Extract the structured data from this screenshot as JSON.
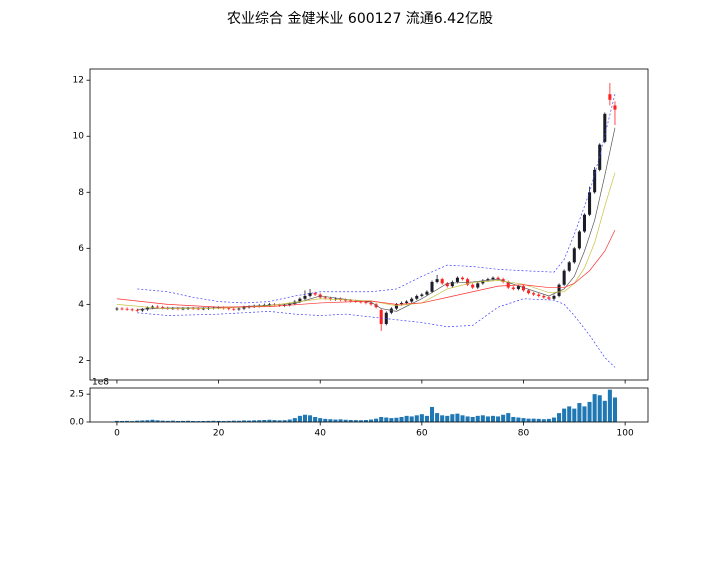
{
  "chart_data": [
    {
      "type": "candlestick",
      "title": "农业综合 金健米业 600127 流通6.42亿股",
      "up_color": "#1c1c28",
      "down_color": "#ff2020",
      "open": [
        3.82,
        3.85,
        3.84,
        3.82,
        3.8,
        3.78,
        3.82,
        3.88,
        3.92,
        3.9,
        3.87,
        3.85,
        3.86,
        3.84,
        3.85,
        3.86,
        3.85,
        3.84,
        3.85,
        3.87,
        3.88,
        3.88,
        3.86,
        3.84,
        3.82,
        3.85,
        3.9,
        3.92,
        3.94,
        3.96,
        3.98,
        4.0,
        3.97,
        3.96,
        3.98,
        4.02,
        4.1,
        4.2,
        4.3,
        4.4,
        4.35,
        4.25,
        4.22,
        4.18,
        4.2,
        4.16,
        4.14,
        4.12,
        4.1,
        4.08,
        4.05,
        4.0,
        3.8,
        3.3,
        3.7,
        3.85,
        4.0,
        4.05,
        4.1,
        4.2,
        4.3,
        4.35,
        4.45,
        4.8,
        4.9,
        4.75,
        4.65,
        4.8,
        4.95,
        4.9,
        4.7,
        4.6,
        4.75,
        4.85,
        4.9,
        4.95,
        4.9,
        4.8,
        4.6,
        4.55,
        4.65,
        4.5,
        4.4,
        4.35,
        4.3,
        4.25,
        4.2,
        4.3,
        4.7,
        5.2,
        5.5,
        6.0,
        6.6,
        7.2,
        8.0,
        8.8,
        9.8,
        11.5,
        11.1
      ],
      "high": [
        3.9,
        3.9,
        3.89,
        3.87,
        3.85,
        3.87,
        3.93,
        3.97,
        3.97,
        3.95,
        3.92,
        3.91,
        3.91,
        3.9,
        3.91,
        3.91,
        3.9,
        3.9,
        3.92,
        3.93,
        3.93,
        3.93,
        3.91,
        3.89,
        3.9,
        3.95,
        3.97,
        3.99,
        4.01,
        4.03,
        4.05,
        4.05,
        4.02,
        4.03,
        4.07,
        4.15,
        4.25,
        4.5,
        4.55,
        4.45,
        4.4,
        4.3,
        4.27,
        4.25,
        4.25,
        4.21,
        4.19,
        4.17,
        4.15,
        4.13,
        4.1,
        4.05,
        3.85,
        3.75,
        3.9,
        4.05,
        4.1,
        4.15,
        4.25,
        4.35,
        4.4,
        4.5,
        4.85,
        5.05,
        4.95,
        4.8,
        4.85,
        5.0,
        5.0,
        4.95,
        4.75,
        4.8,
        4.9,
        4.95,
        5.0,
        5.0,
        4.95,
        4.85,
        4.65,
        4.7,
        4.7,
        4.55,
        4.45,
        4.4,
        4.35,
        4.3,
        4.35,
        4.75,
        5.25,
        5.55,
        6.05,
        6.65,
        7.25,
        8.2,
        8.9,
        9.75,
        10.85,
        11.9,
        11.25
      ],
      "low": [
        3.77,
        3.79,
        3.77,
        3.75,
        3.73,
        3.73,
        3.77,
        3.83,
        3.85,
        3.82,
        3.8,
        3.8,
        3.79,
        3.79,
        3.8,
        3.8,
        3.79,
        3.79,
        3.8,
        3.82,
        3.83,
        3.81,
        3.79,
        3.77,
        3.77,
        3.8,
        3.85,
        3.87,
        3.89,
        3.91,
        3.93,
        3.92,
        3.91,
        3.91,
        3.93,
        3.97,
        4.05,
        4.15,
        4.25,
        4.3,
        4.2,
        4.17,
        4.13,
        4.13,
        4.11,
        4.09,
        4.07,
        4.05,
        4.03,
        4.0,
        3.95,
        3.85,
        3.05,
        3.25,
        3.65,
        3.8,
        3.95,
        4.0,
        4.05,
        4.15,
        4.25,
        4.3,
        4.4,
        4.75,
        4.7,
        4.6,
        4.6,
        4.75,
        4.85,
        4.65,
        4.55,
        4.55,
        4.7,
        4.8,
        4.85,
        4.85,
        4.75,
        4.55,
        4.5,
        4.5,
        4.45,
        4.35,
        4.3,
        4.25,
        4.2,
        4.15,
        4.15,
        4.25,
        4.65,
        5.15,
        5.45,
        5.95,
        6.55,
        7.15,
        7.95,
        8.75,
        9.75,
        11.1,
        10.4
      ],
      "close": [
        3.85,
        3.84,
        3.82,
        3.8,
        3.78,
        3.82,
        3.88,
        3.92,
        3.9,
        3.87,
        3.85,
        3.86,
        3.84,
        3.85,
        3.86,
        3.85,
        3.84,
        3.85,
        3.87,
        3.88,
        3.88,
        3.86,
        3.84,
        3.82,
        3.85,
        3.9,
        3.92,
        3.94,
        3.96,
        3.98,
        4.0,
        3.97,
        3.96,
        3.98,
        4.02,
        4.1,
        4.2,
        4.3,
        4.4,
        4.35,
        4.25,
        4.22,
        4.18,
        4.2,
        4.16,
        4.14,
        4.12,
        4.1,
        4.08,
        4.05,
        4.0,
        3.9,
        3.3,
        3.7,
        3.85,
        4.0,
        4.05,
        4.1,
        4.2,
        4.3,
        4.35,
        4.45,
        4.8,
        4.9,
        4.75,
        4.65,
        4.8,
        4.95,
        4.9,
        4.7,
        4.6,
        4.75,
        4.85,
        4.9,
        4.95,
        4.9,
        4.8,
        4.6,
        4.55,
        4.65,
        4.5,
        4.4,
        4.35,
        4.3,
        4.25,
        4.2,
        4.3,
        4.7,
        5.2,
        5.5,
        6.0,
        6.6,
        7.2,
        8.0,
        8.8,
        9.7,
        10.8,
        11.3,
        10.95
      ],
      "series": [
        {
          "color": "#555555",
          "dashed": false,
          "x": [
            4,
            10,
            20,
            30,
            35,
            40,
            45,
            50,
            52,
            55,
            60,
            65,
            70,
            75,
            80,
            85,
            88,
            90,
            92,
            94,
            96,
            98
          ],
          "values": [
            3.82,
            3.87,
            3.87,
            3.97,
            4.03,
            4.3,
            4.18,
            4.08,
            3.85,
            3.75,
            4.2,
            4.75,
            4.8,
            4.9,
            4.6,
            4.3,
            4.55,
            5.0,
            5.9,
            7.0,
            8.6,
            10.3
          ]
        },
        {
          "color": "#c8c040",
          "dashed": false,
          "x": [
            0,
            9,
            20,
            30,
            40,
            50,
            55,
            60,
            65,
            70,
            75,
            80,
            85,
            88,
            90,
            92,
            94,
            96,
            98
          ],
          "values": [
            4.0,
            3.85,
            3.86,
            3.95,
            4.2,
            4.12,
            3.95,
            4.05,
            4.55,
            4.78,
            4.85,
            4.72,
            4.42,
            4.45,
            4.75,
            5.3,
            6.2,
            7.5,
            8.7
          ]
        },
        {
          "color": "#ff3030",
          "dashed": false,
          "x": [
            0,
            10,
            20,
            30,
            40,
            50,
            55,
            60,
            65,
            70,
            75,
            80,
            85,
            88,
            90,
            93,
            96,
            98
          ],
          "values": [
            4.2,
            4.0,
            3.9,
            3.92,
            4.05,
            4.12,
            4.0,
            4.05,
            4.25,
            4.45,
            4.65,
            4.7,
            4.6,
            4.6,
            4.75,
            5.2,
            5.9,
            6.65
          ]
        },
        {
          "color": "#4040ff",
          "dashed": true,
          "x": [
            4,
            10,
            15,
            20,
            25,
            30,
            35,
            40,
            45,
            50,
            55,
            60,
            65,
            70,
            75,
            80,
            86,
            88,
            90,
            93,
            95,
            98
          ],
          "values": [
            4.55,
            4.45,
            4.25,
            4.1,
            4.05,
            4.1,
            4.3,
            4.45,
            4.45,
            4.45,
            4.55,
            5.0,
            5.4,
            5.35,
            5.25,
            5.2,
            5.15,
            5.6,
            6.5,
            8.0,
            9.3,
            11.5
          ]
        },
        {
          "color": "#4040ff",
          "dashed": true,
          "x": [
            4,
            10,
            20,
            30,
            35,
            40,
            45,
            50,
            55,
            60,
            65,
            70,
            75,
            80,
            86,
            88,
            90,
            93,
            96,
            98
          ],
          "values": [
            3.7,
            3.6,
            3.65,
            3.75,
            3.65,
            3.6,
            3.65,
            3.55,
            3.45,
            3.35,
            3.2,
            3.25,
            3.9,
            4.2,
            4.15,
            4.0,
            3.6,
            2.9,
            2.1,
            1.75
          ]
        }
      ],
      "xlim": [
        -5.3,
        104.5
      ],
      "ylim": [
        1.3,
        12.4
      ],
      "xticks": [
        0,
        20,
        40,
        60,
        80,
        100
      ],
      "yticks": [
        2,
        4,
        6,
        8,
        10,
        12
      ]
    },
    {
      "type": "bar",
      "color": "#1f77b4",
      "offset_label": "1e8",
      "values": [
        0.1,
        0.09,
        0.1,
        0.08,
        0.12,
        0.14,
        0.16,
        0.2,
        0.15,
        0.12,
        0.1,
        0.12,
        0.09,
        0.1,
        0.11,
        0.09,
        0.08,
        0.09,
        0.1,
        0.11,
        0.1,
        0.09,
        0.1,
        0.12,
        0.11,
        0.14,
        0.13,
        0.15,
        0.16,
        0.18,
        0.2,
        0.17,
        0.15,
        0.16,
        0.22,
        0.35,
        0.55,
        0.65,
        0.6,
        0.45,
        0.35,
        0.28,
        0.25,
        0.22,
        0.24,
        0.2,
        0.18,
        0.17,
        0.16,
        0.18,
        0.22,
        0.3,
        0.45,
        0.4,
        0.35,
        0.38,
        0.45,
        0.55,
        0.5,
        0.6,
        0.7,
        0.55,
        1.35,
        0.8,
        0.6,
        0.55,
        0.7,
        0.75,
        0.6,
        0.5,
        0.45,
        0.55,
        0.6,
        0.5,
        0.55,
        0.5,
        0.65,
        0.8,
        0.45,
        0.4,
        0.35,
        0.3,
        0.3,
        0.28,
        0.25,
        0.28,
        0.4,
        0.8,
        1.2,
        1.4,
        1.2,
        1.7,
        1.4,
        1.8,
        2.5,
        2.4,
        1.9,
        2.9,
        2.2
      ],
      "xlim": [
        -5.3,
        104.5
      ],
      "ylim": [
        0,
        3.05
      ],
      "xticks": [
        0,
        20,
        40,
        60,
        80,
        100
      ],
      "yticks": [
        {
          "value": 0,
          "label": "0.0"
        },
        {
          "value": 2.5,
          "label": "2.5"
        }
      ]
    }
  ]
}
